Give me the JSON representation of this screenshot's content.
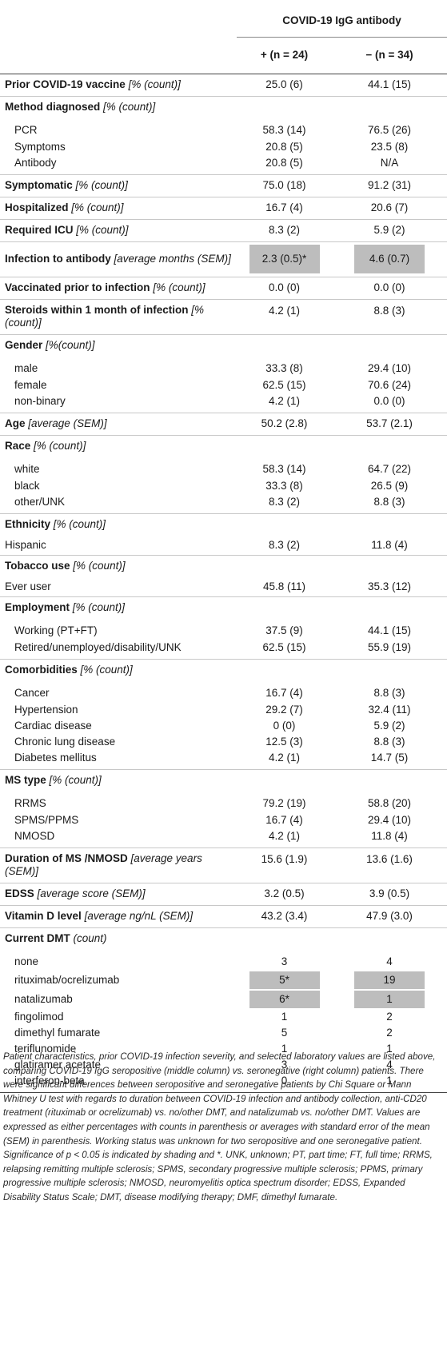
{
  "header": {
    "group": "COVID-19 IgG antibody",
    "pos": "+ (n = 24)",
    "neg": "− (n = 34)"
  },
  "rows": {
    "vaccine": {
      "name": "Prior COVID-19 vaccine",
      "unit": "[% (count)]",
      "pos": "25.0 (6)",
      "neg": "44.1 (15)"
    },
    "method": {
      "name": "Method diagnosed",
      "unit": "[% (count)]"
    },
    "pcr": {
      "name": "PCR",
      "pos": "58.3 (14)",
      "neg": "76.5 (26)"
    },
    "symptoms": {
      "name": "Symptoms",
      "pos": "20.8 (5)",
      "neg": "23.5 (8)"
    },
    "antibody": {
      "name": "Antibody",
      "pos": "20.8 (5)",
      "neg": "N/A"
    },
    "symptomatic": {
      "name": "Symptomatic",
      "unit": "[% (count)]",
      "pos": "75.0 (18)",
      "neg": "91.2 (31)"
    },
    "hospitalized": {
      "name": "Hospitalized",
      "unit": "[% (count)]",
      "pos": "16.7 (4)",
      "neg": "20.6 (7)"
    },
    "icu": {
      "name": "Required ICU",
      "unit": "[% (count)]",
      "pos": "8.3 (2)",
      "neg": "5.9 (2)"
    },
    "infection": {
      "name": "Infection to antibody",
      "unit": "[average months (SEM)]",
      "pos": "2.3 (0.5)*",
      "neg": "4.6 (0.7)"
    },
    "vaccinated_prior": {
      "name": "Vaccinated prior to infection",
      "unit": "[% (count)]",
      "pos": "0.0 (0)",
      "neg": "0.0 (0)"
    },
    "steroids": {
      "name": "Steroids within 1 month of infection",
      "unit": "[% (count)]",
      "pos": "4.2 (1)",
      "neg": "8.8 (3)"
    },
    "gender": {
      "name": "Gender",
      "unit": "[%(count)]"
    },
    "male": {
      "name": "male",
      "pos": "33.3 (8)",
      "neg": "29.4 (10)"
    },
    "female": {
      "name": "female",
      "pos": "62.5 (15)",
      "neg": "70.6 (24)"
    },
    "nonbinary": {
      "name": "non-binary",
      "pos": "4.2 (1)",
      "neg": "0.0 (0)"
    },
    "age": {
      "name": "Age",
      "unit": "[average (SEM)]",
      "pos": "50.2 (2.8)",
      "neg": "53.7 (2.1)"
    },
    "race": {
      "name": "Race",
      "unit": "[% (count)]"
    },
    "white": {
      "name": "white",
      "pos": "58.3 (14)",
      "neg": "64.7 (22)"
    },
    "black": {
      "name": "black",
      "pos": "33.3 (8)",
      "neg": "26.5 (9)"
    },
    "other_unk": {
      "name": "other/UNK",
      "pos": "8.3 (2)",
      "neg": "8.8 (3)"
    },
    "ethnicity": {
      "name": "Ethnicity",
      "unit": "[% (count)]"
    },
    "hispanic": {
      "name": "Hispanic",
      "pos": "8.3 (2)",
      "neg": "11.8 (4)"
    },
    "tobacco": {
      "name": "Tobacco use",
      "unit": "[% (count)]"
    },
    "ever_user": {
      "name": "Ever user",
      "pos": "45.8 (11)",
      "neg": "35.3 (12)"
    },
    "employment": {
      "name": "Employment",
      "unit": "[% (count)]"
    },
    "working": {
      "name": "Working (PT+FT)",
      "pos": "37.5 (9)",
      "neg": "44.1 (15)"
    },
    "retired": {
      "name": "Retired/unemployed/disability/UNK",
      "pos": "62.5 (15)",
      "neg": "55.9 (19)"
    },
    "comorbidities": {
      "name": "Comorbidities",
      "unit": "[% (count)]"
    },
    "cancer": {
      "name": "Cancer",
      "pos": "16.7 (4)",
      "neg": "8.8 (3)"
    },
    "hypertension": {
      "name": "Hypertension",
      "pos": "29.2 (7)",
      "neg": "32.4 (11)"
    },
    "cardiac": {
      "name": "Cardiac disease",
      "pos": "0 (0)",
      "neg": "5.9 (2)"
    },
    "lung": {
      "name": "Chronic lung disease",
      "pos": "12.5 (3)",
      "neg": "8.8 (3)"
    },
    "diabetes": {
      "name": "Diabetes mellitus",
      "pos": "4.2 (1)",
      "neg": "14.7 (5)"
    },
    "ms_type": {
      "name": "MS type",
      "unit": "[% (count)]"
    },
    "rrms": {
      "name": "RRMS",
      "pos": "79.2 (19)",
      "neg": "58.8 (20)"
    },
    "spms": {
      "name": "SPMS/PPMS",
      "pos": "16.7 (4)",
      "neg": "29.4 (10)"
    },
    "nmosd": {
      "name": "NMOSD",
      "pos": "4.2 (1)",
      "neg": "11.8 (4)"
    },
    "duration": {
      "name": "Duration of MS /NMOSD",
      "unit": "[average years (SEM)]",
      "pos": "15.6 (1.9)",
      "neg": "13.6 (1.6)"
    },
    "edss": {
      "name": "EDSS",
      "unit": "[average score (SEM)]",
      "pos": "3.2 (0.5)",
      "neg": "3.9 (0.5)"
    },
    "vitd": {
      "name": "Vitamin D level",
      "unit": "[average ng/nL (SEM)]",
      "pos": "43.2 (3.4)",
      "neg": "47.9 (3.0)"
    },
    "dmt": {
      "name": "Current DMT",
      "unit": "(count)"
    },
    "none": {
      "name": "none",
      "pos": "3",
      "neg": "4"
    },
    "ritux": {
      "name": "rituximab/ocrelizumab",
      "pos": "5*",
      "neg": "19"
    },
    "natal": {
      "name": "natalizumab",
      "pos": "6*",
      "neg": "1"
    },
    "fingo": {
      "name": "fingolimod",
      "pos": "1",
      "neg": "2"
    },
    "dmf": {
      "name": "dimethyl fumarate",
      "pos": "5",
      "neg": "2"
    },
    "teri": {
      "name": "teriflunomide",
      "pos": "1",
      "neg": "1"
    },
    "glat": {
      "name": "glatiramer acetate",
      "pos": "3",
      "neg": "4"
    },
    "ifn": {
      "name": "interferon-beta",
      "pos": "0",
      "neg": "1"
    }
  },
  "caption": "Patient characteristics, prior COVID-19 infection severity, and selected laboratory values are listed above, comparing COVID-19 IgG seropositive (middle column) vs. seronegative (right column) patients. There were significant differences between seropositive and seronegative patients by Chi Square or Mann Whitney U test with regards to duration between COVID-19 infection and antibody collection, anti-CD20 treatment (rituximab or ocrelizumab) vs. no/other DMT, and natalizumab vs. no/other DMT. Values are expressed as either percentages with counts in parenthesis or averages with standard error of the mean (SEM) in parenthesis. Working status was unknown for two seropositive and one seronegative patient. Significance of p < 0.05 is indicated by shading and *. UNK, unknown; PT, part time; FT, full time; RRMS, relapsing remitting multiple sclerosis; SPMS, secondary progressive multiple sclerosis; PPMS, primary progressive multiple sclerosis; NMOSD, neuromyelitis optica spectrum disorder; EDSS, Expanded Disability Status Scale; DMT, disease modifying therapy; DMF, dimethyl fumarate.",
  "colors": {
    "shade": "#bdbdbd",
    "rule": "#c8c8c8"
  }
}
